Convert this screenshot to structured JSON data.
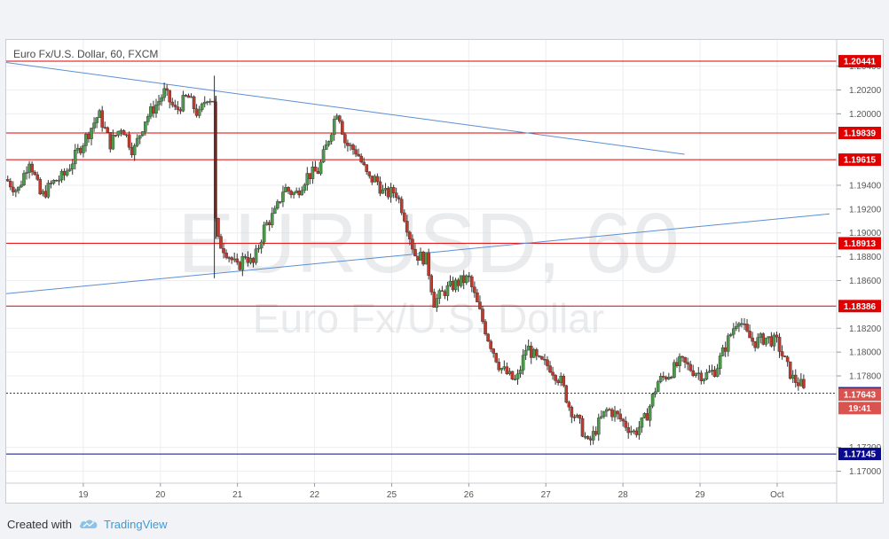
{
  "footer": {
    "created_with": "Created with",
    "brand": "TradingView",
    "logo_icon": "tradingview-cloud-icon"
  },
  "chart_data": {
    "type": "candlestick",
    "title": "Euro Fx/U.S. Dollar, 60, FXCM",
    "watermark": {
      "symbol": "EURUSD, 60",
      "name": "Euro Fx/U.S. Dollar"
    },
    "ylim": [
      1.169,
      1.2062
    ],
    "y_ticks": [
      1.17,
      1.172,
      1.178,
      1.18,
      1.182,
      1.186,
      1.188,
      1.19,
      1.192,
      1.194,
      1.2,
      1.202,
      1.204
    ],
    "y_tick_labels": [
      "1.17000",
      "1.17200",
      "1.17800",
      "1.18000",
      "1.18200",
      "1.18600",
      "1.18800",
      "1.19000",
      "1.19200",
      "1.19400",
      "1.20000",
      "1.20200",
      "1.20400"
    ],
    "x_ticks": [
      {
        "label": "19",
        "t": 1
      },
      {
        "label": "20",
        "t": 2
      },
      {
        "label": "21",
        "t": 3
      },
      {
        "label": "22",
        "t": 4
      },
      {
        "label": "25",
        "t": 5
      },
      {
        "label": "26",
        "t": 6
      },
      {
        "label": "27",
        "t": 7
      },
      {
        "label": "28",
        "t": 8
      },
      {
        "label": "29",
        "t": 9
      },
      {
        "label": "Oct",
        "t": 10
      }
    ],
    "xlim": [
      0.0,
      10.68
    ],
    "horizontal_levels": [
      {
        "value": 1.20441,
        "label": "1.20441",
        "color": "#e00000"
      },
      {
        "value": 1.19839,
        "label": "1.19839",
        "color": "#e00000"
      },
      {
        "value": 1.19615,
        "label": "1.19615",
        "color": "#e00000"
      },
      {
        "value": 1.18913,
        "label": "1.18913",
        "color": "#e00000"
      },
      {
        "value": 1.18386,
        "label": "1.18386",
        "color": "#e00000"
      },
      {
        "value": 1.17145,
        "label": "1.17145",
        "color": "#0a0a8c"
      }
    ],
    "price_markers": [
      {
        "value": 1.17655,
        "label": "1.17655",
        "color": "#1a2fb0",
        "dotted_line": true
      },
      {
        "value": 1.17643,
        "label": "1.17643",
        "color": "#d9534f"
      },
      {
        "value": 1.1753,
        "label": "19:41",
        "color": "#d9534f"
      }
    ],
    "hidden_tick_fragment": {
      "value": 1.1752,
      "label": "1"
    },
    "trendlines": [
      {
        "t1": 0.0,
        "v1": 1.2043,
        "t2": 8.8,
        "v2": 1.1966,
        "color": "#5b8fd4"
      },
      {
        "t1": 0.0,
        "v1": 1.1849,
        "t2": 10.68,
        "v2": 1.1916,
        "color": "#5b8fd4"
      }
    ],
    "candle_anchors": [
      [
        0.0,
        1.1945
      ],
      [
        0.15,
        1.1935
      ],
      [
        0.3,
        1.1962
      ],
      [
        0.45,
        1.193
      ],
      [
        0.6,
        1.1942
      ],
      [
        0.75,
        1.1948
      ],
      [
        0.9,
        1.1965
      ],
      [
        1.05,
        1.1982
      ],
      [
        1.2,
        1.2
      ],
      [
        1.35,
        1.1975
      ],
      [
        1.5,
        1.199
      ],
      [
        1.65,
        1.1968
      ],
      [
        1.8,
        1.1995
      ],
      [
        1.95,
        1.2008
      ],
      [
        2.05,
        1.2018
      ],
      [
        2.2,
        1.2002
      ],
      [
        2.35,
        1.2015
      ],
      [
        2.5,
        1.1998
      ],
      [
        2.6,
        1.2015
      ],
      [
        2.68,
        1.2012
      ],
      [
        2.72,
        1.1895
      ],
      [
        2.85,
        1.1885
      ],
      [
        3.0,
        1.187
      ],
      [
        3.1,
        1.1882
      ],
      [
        3.2,
        1.1873
      ],
      [
        3.35,
        1.1905
      ],
      [
        3.5,
        1.1918
      ],
      [
        3.6,
        1.1938
      ],
      [
        3.75,
        1.1932
      ],
      [
        3.9,
        1.1948
      ],
      [
        4.05,
        1.1952
      ],
      [
        4.15,
        1.1972
      ],
      [
        4.3,
        1.2005
      ],
      [
        4.4,
        1.1975
      ],
      [
        4.55,
        1.1968
      ],
      [
        4.7,
        1.1945
      ],
      [
        4.8,
        1.1945
      ],
      [
        4.9,
        1.1932
      ],
      [
        5.05,
        1.1935
      ],
      [
        5.15,
        1.1918
      ],
      [
        5.3,
        1.1882
      ],
      [
        5.45,
        1.1878
      ],
      [
        5.55,
        1.1842
      ],
      [
        5.7,
        1.1852
      ],
      [
        5.85,
        1.1858
      ],
      [
        6.0,
        1.1862
      ],
      [
        6.1,
        1.1842
      ],
      [
        6.25,
        1.1812
      ],
      [
        6.4,
        1.1788
      ],
      [
        6.55,
        1.1778
      ],
      [
        6.62,
        1.1775
      ],
      [
        6.75,
        1.1805
      ],
      [
        6.9,
        1.1792
      ],
      [
        7.05,
        1.1788
      ],
      [
        7.2,
        1.1775
      ],
      [
        7.3,
        1.1755
      ],
      [
        7.45,
        1.1738
      ],
      [
        7.55,
        1.1722
      ],
      [
        7.7,
        1.1742
      ],
      [
        7.8,
        1.1752
      ],
      [
        7.9,
        1.1748
      ],
      [
        8.05,
        1.1738
      ],
      [
        8.15,
        1.1732
      ],
      [
        8.3,
        1.1745
      ],
      [
        8.45,
        1.1775
      ],
      [
        8.6,
        1.1782
      ],
      [
        8.75,
        1.1792
      ],
      [
        8.9,
        1.1785
      ],
      [
        9.05,
        1.178
      ],
      [
        9.2,
        1.1785
      ],
      [
        9.35,
        1.1808
      ],
      [
        9.5,
        1.183
      ],
      [
        9.6,
        1.1815
      ],
      [
        9.7,
        1.1808
      ],
      [
        9.85,
        1.1812
      ],
      [
        10.0,
        1.1808
      ],
      [
        10.1,
        1.1792
      ],
      [
        10.2,
        1.1778
      ],
      [
        10.32,
        1.1772
      ],
      [
        10.36,
        1.17645
      ]
    ],
    "candle_step": 0.035,
    "colors": {
      "up": "#4a9a4a",
      "down": "#c0392b",
      "grid": "#eceef1",
      "axis_text": "#555555"
    }
  }
}
